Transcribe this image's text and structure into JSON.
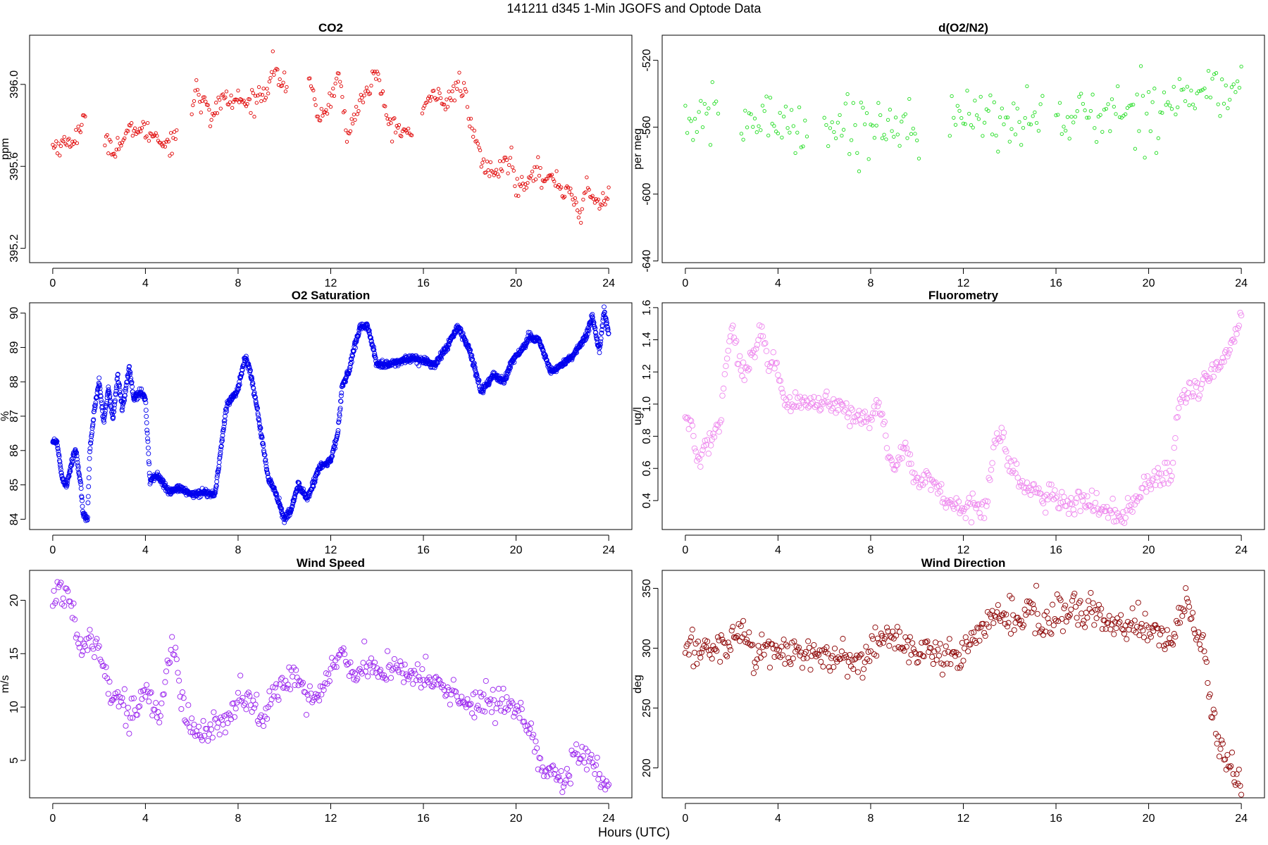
{
  "figure": {
    "title": "141211   d345   1-Min  JGOFS and Optode Data",
    "x_label": "Hours (UTC)"
  },
  "chart_data": [
    {
      "id": "co2",
      "type": "scatter",
      "title": "CO2",
      "ylabel": "ppm",
      "xlabel": "",
      "xlim": [
        -1,
        25
      ],
      "ylim": [
        395.13,
        396.24
      ],
      "xticks": [
        0,
        4,
        8,
        12,
        16,
        20,
        24
      ],
      "xtick_labels": [
        "0",
        "4",
        "8",
        "12",
        "16",
        "20",
        "24"
      ],
      "yticks": [
        395.2,
        395.6,
        396.0
      ],
      "ytick_labels": [
        "395.2",
        "395.6",
        "396.0"
      ],
      "color": "#e00000",
      "marker_radius": 2.2,
      "point_step": 3,
      "gaps": [
        [
          1.45,
          2.25
        ],
        [
          5.35,
          5.95
        ],
        [
          10.15,
          11.05
        ],
        [
          15.55,
          15.95
        ]
      ],
      "series": [
        {
          "name": "CO2",
          "x": [
            0.0,
            0.5,
            1.0,
            1.2,
            1.4,
            2.3,
            2.6,
            3.0,
            3.5,
            4.0,
            4.5,
            4.8,
            5.0,
            5.3,
            6.0,
            6.2,
            6.4,
            6.6,
            6.8,
            7.0,
            7.3,
            7.6,
            8.0,
            8.4,
            8.8,
            9.2,
            9.5,
            9.8,
            10.1,
            11.1,
            11.3,
            11.6,
            12.0,
            12.3,
            12.5,
            12.7,
            13.0,
            13.3,
            13.6,
            14.0,
            14.3,
            14.6,
            15.0,
            15.5,
            16.0,
            16.3,
            16.6,
            16.9,
            17.2,
            17.5,
            17.8,
            18.0,
            18.3,
            18.6,
            18.9,
            19.2,
            19.5,
            19.8,
            20.0,
            20.3,
            20.6,
            20.9,
            21.2,
            21.5,
            21.8,
            22.0,
            22.3,
            22.6,
            22.8,
            23.0,
            23.3,
            23.6,
            24.0
          ],
          "y": [
            395.7,
            395.71,
            395.74,
            395.78,
            395.82,
            395.75,
            395.68,
            395.72,
            395.79,
            395.77,
            395.75,
            395.71,
            395.72,
            395.74,
            395.85,
            396.02,
            395.9,
            395.96,
            395.8,
            395.86,
            395.95,
            395.91,
            395.93,
            395.9,
            395.94,
            395.96,
            396.1,
            396.02,
            395.98,
            396.02,
            395.9,
            395.83,
            395.93,
            396.05,
            395.95,
            395.72,
            395.85,
            395.92,
            395.97,
            396.07,
            395.88,
            395.8,
            395.78,
            395.76,
            395.86,
            395.93,
            395.98,
            395.9,
            395.93,
            396.01,
            395.96,
            395.8,
            395.72,
            395.6,
            395.58,
            395.56,
            395.62,
            395.64,
            395.5,
            395.52,
            395.56,
            395.6,
            395.52,
            395.54,
            395.53,
            395.47,
            395.5,
            395.42,
            395.3,
            395.52,
            395.45,
            395.4,
            395.48
          ],
          "noise": 0.025
        }
      ]
    },
    {
      "id": "do2n2",
      "type": "scatter",
      "title": "d(O2/N2)",
      "ylabel": "per meg",
      "xlabel": "",
      "xlim": [
        -1,
        25
      ],
      "ylim": [
        -641,
        -505
      ],
      "xticks": [
        0,
        4,
        8,
        12,
        16,
        20,
        24
      ],
      "xtick_labels": [
        "0",
        "4",
        "8",
        "12",
        "16",
        "20",
        "24"
      ],
      "yticks": [
        -640,
        -600,
        -560,
        -520
      ],
      "ytick_labels": [
        "-640",
        "-600",
        "-560",
        "-520"
      ],
      "color": "#22dd22",
      "marker_radius": 2.2,
      "point_step": 5,
      "gaps": [
        [
          1.45,
          2.35
        ],
        [
          5.25,
          5.95
        ],
        [
          10.15,
          11.35
        ],
        [
          15.45,
          15.95
        ]
      ],
      "series": [
        {
          "name": "d(O2/N2)",
          "x": [
            0,
            2,
            4,
            6,
            8,
            10,
            11.5,
            14,
            16,
            18,
            20,
            21,
            22,
            24
          ],
          "y": [
            -556,
            -556,
            -556,
            -560,
            -559,
            -556,
            -556,
            -555,
            -554,
            -553,
            -548,
            -543,
            -540,
            -538
          ],
          "noise": 9
        }
      ]
    },
    {
      "id": "o2sat",
      "type": "scatter",
      "title": "O2 Saturation",
      "ylabel": "%",
      "xlabel": "",
      "xlim": [
        -1,
        25
      ],
      "ylim": [
        83.7,
        90.3
      ],
      "xticks": [
        0,
        4,
        8,
        12,
        16,
        20,
        24
      ],
      "xtick_labels": [
        "0",
        "4",
        "8",
        "12",
        "16",
        "20",
        "24"
      ],
      "yticks": [
        84,
        85,
        86,
        87,
        88,
        89,
        90
      ],
      "ytick_labels": [
        "84",
        "85",
        "86",
        "87",
        "88",
        "89",
        "90"
      ],
      "color": "#0000ee",
      "marker_radius": 3.0,
      "point_step": 0.8,
      "gaps": [],
      "series": [
        {
          "name": "O2 Saturation",
          "x": [
            0.0,
            0.2,
            0.4,
            0.6,
            0.9,
            1.0,
            1.2,
            1.3,
            1.5,
            1.6,
            1.8,
            2.0,
            2.2,
            2.4,
            2.6,
            2.8,
            3.0,
            3.3,
            3.5,
            3.8,
            4.0,
            4.2,
            4.5,
            5.0,
            5.5,
            6.0,
            6.5,
            7.0,
            7.5,
            8.0,
            8.3,
            8.5,
            8.8,
            9.3,
            9.6,
            10.0,
            10.3,
            10.6,
            11.0,
            11.5,
            12.0,
            12.3,
            12.5,
            12.8,
            13.0,
            13.3,
            13.6,
            14.0,
            14.5,
            15.0,
            15.5,
            16.0,
            16.5,
            17.0,
            17.5,
            18.0,
            18.5,
            19.0,
            19.5,
            19.8,
            20.2,
            20.6,
            21.0,
            21.5,
            22.0,
            22.5,
            23.0,
            23.3,
            23.6,
            23.8,
            24.0
          ],
          "y": [
            86.3,
            86.2,
            85.2,
            85.0,
            85.9,
            86.0,
            85.0,
            84.2,
            84.0,
            86.0,
            87.2,
            88.0,
            86.8,
            87.8,
            86.9,
            88.2,
            87.2,
            88.4,
            87.5,
            87.7,
            87.5,
            85.1,
            85.3,
            84.8,
            84.9,
            84.7,
            84.8,
            84.7,
            87.3,
            87.8,
            88.7,
            88.4,
            87.3,
            85.2,
            84.8,
            84.0,
            84.3,
            85.0,
            84.6,
            85.5,
            85.7,
            86.5,
            87.9,
            88.3,
            89.0,
            89.6,
            89.6,
            88.5,
            88.5,
            88.6,
            88.7,
            88.6,
            88.5,
            89.0,
            89.6,
            88.9,
            87.7,
            88.2,
            88.0,
            88.6,
            88.9,
            89.3,
            89.2,
            88.3,
            88.5,
            88.8,
            89.3,
            89.9,
            88.9,
            90.1,
            89.4
          ],
          "noise": 0.05
        }
      ]
    },
    {
      "id": "fluor",
      "type": "scatter",
      "title": "Fluorometry",
      "ylabel": "ug/l",
      "xlabel": "",
      "xlim": [
        -1,
        25
      ],
      "ylim": [
        0.22,
        1.63
      ],
      "xticks": [
        0,
        4,
        8,
        12,
        16,
        20,
        24
      ],
      "xtick_labels": [
        "0",
        "4",
        "8",
        "12",
        "16",
        "20",
        "24"
      ],
      "yticks": [
        0.4,
        0.6,
        0.8,
        1.0,
        1.2,
        1.4,
        1.6
      ],
      "ytick_labels": [
        "0.4",
        "0.6",
        "0.8",
        "1.0",
        "1.2",
        "1.4",
        "1.6"
      ],
      "color": "#ee88ee",
      "marker_radius": 3.8,
      "point_step": 3,
      "gaps": [],
      "series": [
        {
          "name": "Fluorometry",
          "x": [
            0.0,
            0.3,
            0.5,
            0.8,
            1.0,
            1.2,
            1.5,
            1.8,
            2.0,
            2.3,
            2.6,
            3.0,
            3.3,
            3.6,
            4.0,
            4.3,
            5.0,
            6.0,
            7.0,
            7.5,
            8.0,
            8.3,
            8.6,
            9.0,
            9.5,
            10.0,
            10.5,
            11.0,
            11.5,
            12.0,
            12.5,
            13.0,
            13.3,
            13.6,
            14.0,
            14.5,
            15.0,
            15.5,
            16.0,
            16.5,
            17.0,
            17.5,
            18.0,
            18.5,
            19.0,
            19.5,
            20.0,
            20.5,
            21.0,
            21.3,
            21.6,
            22.0,
            22.5,
            23.0,
            23.5,
            24.0
          ],
          "y": [
            0.9,
            0.85,
            0.65,
            0.7,
            0.75,
            0.82,
            0.88,
            1.3,
            1.48,
            1.25,
            1.2,
            1.3,
            1.45,
            1.25,
            1.2,
            1.0,
            1.0,
            1.0,
            0.95,
            0.92,
            0.9,
            1.05,
            0.8,
            0.62,
            0.72,
            0.52,
            0.55,
            0.45,
            0.38,
            0.34,
            0.4,
            0.35,
            0.75,
            0.8,
            0.65,
            0.5,
            0.48,
            0.4,
            0.42,
            0.36,
            0.4,
            0.38,
            0.35,
            0.32,
            0.32,
            0.42,
            0.5,
            0.55,
            0.55,
            1.0,
            1.05,
            1.1,
            1.15,
            1.25,
            1.35,
            1.55
          ],
          "noise": 0.035
        }
      ]
    },
    {
      "id": "wspd",
      "type": "scatter",
      "title": "Wind Speed",
      "ylabel": "m/s",
      "xlabel": "",
      "xlim": [
        -1,
        25
      ],
      "ylim": [
        1.5,
        22.8
      ],
      "xticks": [
        0,
        4,
        8,
        12,
        16,
        20,
        24
      ],
      "xtick_labels": [
        "0",
        "4",
        "8",
        "12",
        "16",
        "20",
        "24"
      ],
      "yticks": [
        5,
        10,
        15,
        20
      ],
      "ytick_labels": [
        "5",
        "10",
        "15",
        "20"
      ],
      "color": "#9922ee",
      "marker_radius": 3.6,
      "point_step": 3,
      "gaps": [],
      "series": [
        {
          "name": "Wind Speed",
          "x": [
            0.0,
            0.3,
            0.6,
            0.8,
            1.0,
            1.3,
            1.6,
            2.0,
            2.3,
            2.6,
            3.0,
            3.3,
            3.6,
            4.0,
            4.3,
            4.6,
            5.0,
            5.3,
            5.6,
            6.0,
            6.5,
            7.0,
            7.5,
            8.0,
            8.5,
            9.0,
            9.5,
            10.0,
            10.5,
            11.0,
            11.5,
            12.0,
            12.5,
            13.0,
            13.5,
            14.0,
            14.5,
            15.0,
            15.5,
            16.0,
            16.5,
            17.0,
            17.5,
            18.0,
            18.5,
            19.0,
            19.5,
            20.0,
            20.5,
            20.8,
            21.0,
            21.3,
            21.6,
            22.0,
            22.3,
            22.6,
            23.0,
            23.3,
            23.6,
            24.0
          ],
          "y": [
            20.0,
            21.0,
            20.5,
            20.0,
            17.0,
            16.0,
            16.5,
            16.0,
            13.0,
            11.0,
            10.5,
            9.0,
            10.0,
            11.5,
            10.0,
            9.0,
            14.5,
            15.0,
            10.0,
            8.0,
            7.0,
            8.5,
            9.0,
            11.0,
            10.5,
            9.0,
            11.0,
            12.0,
            13.0,
            10.5,
            11.0,
            14.0,
            15.0,
            13.0,
            14.0,
            13.5,
            13.5,
            13.5,
            12.5,
            13.0,
            12.5,
            11.5,
            11.0,
            10.0,
            10.5,
            10.5,
            10.5,
            9.5,
            8.5,
            7.0,
            5.0,
            4.0,
            4.5,
            2.5,
            3.5,
            5.0,
            5.5,
            4.5,
            3.2,
            2.8
          ],
          "noise": 0.7
        }
      ]
    },
    {
      "id": "wdir",
      "type": "scatter",
      "title": "Wind Direction",
      "ylabel": "deg",
      "xlabel": "",
      "xlim": [
        -1,
        25
      ],
      "ylim": [
        175,
        365
      ],
      "xticks": [
        0,
        4,
        8,
        12,
        16,
        20,
        24
      ],
      "xtick_labels": [
        "0",
        "4",
        "8",
        "12",
        "16",
        "20",
        "24"
      ],
      "yticks": [
        200,
        250,
        300,
        350
      ],
      "ytick_labels": [
        "200",
        "250",
        "300",
        "350"
      ],
      "color": "#8b0000",
      "marker_radius": 3.6,
      "point_step": 3,
      "gaps": [],
      "series": [
        {
          "name": "Wind Direction",
          "x": [
            0.0,
            0.5,
            1.0,
            1.5,
            2.0,
            2.4,
            2.6,
            3.0,
            3.5,
            4.0,
            5.0,
            6.0,
            7.0,
            7.5,
            8.0,
            8.5,
            9.0,
            10.0,
            11.0,
            12.0,
            12.5,
            13.0,
            13.5,
            14.0,
            14.5,
            15.0,
            15.5,
            16.0,
            16.5,
            17.0,
            17.5,
            18.0,
            18.5,
            19.0,
            19.5,
            20.0,
            20.5,
            21.0,
            21.3,
            21.6,
            22.0,
            22.3,
            22.5,
            22.7,
            23.0,
            23.3,
            23.6,
            24.0
          ],
          "y": [
            298,
            298,
            300,
            302,
            304,
            320,
            310,
            292,
            300,
            300,
            295,
            292,
            290,
            285,
            300,
            310,
            308,
            295,
            293,
            297,
            310,
            315,
            325,
            328,
            325,
            330,
            320,
            325,
            330,
            333,
            330,
            325,
            322,
            320,
            318,
            325,
            305,
            310,
            320,
            345,
            315,
            305,
            285,
            250,
            225,
            215,
            205,
            180
          ],
          "noise": 7
        }
      ]
    }
  ]
}
